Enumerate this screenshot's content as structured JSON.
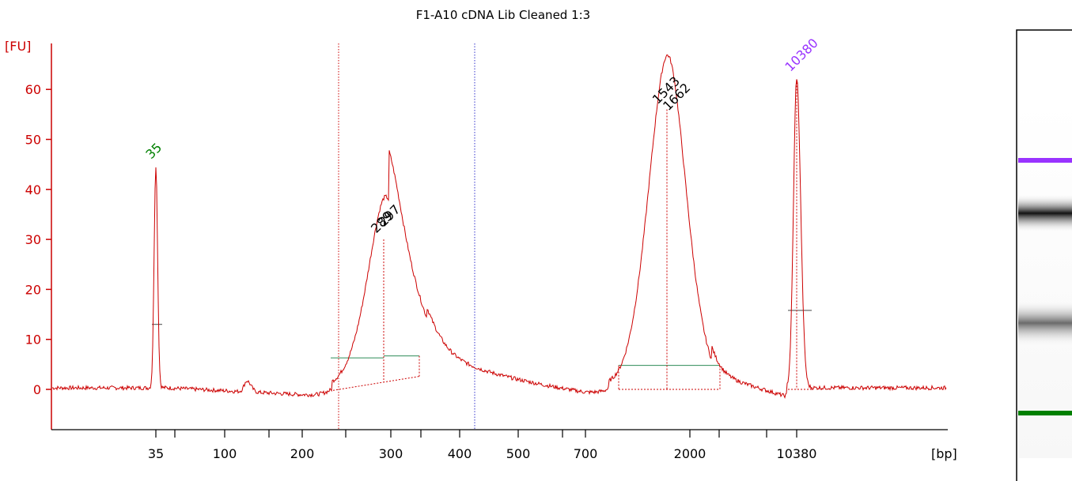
{
  "chart_data": {
    "type": "line",
    "title": "F1-A10 cDNA Lib Cleaned 1:3",
    "ylabel": "[FU]",
    "xlabel": "[bp]",
    "yticks": [
      0,
      10,
      20,
      30,
      40,
      50,
      60
    ],
    "xticks": [
      "35",
      "100",
      "200",
      "300",
      "400",
      "500",
      "700",
      "2000",
      "10380"
    ],
    "ylim": [
      -8,
      68
    ],
    "grid": false,
    "colors": {
      "trace": "#cc0000",
      "axis": "#cc0000",
      "region_line": "#2e8b57",
      "lower_marker": "#008000",
      "upper_marker": "#9933ff",
      "peak_label": "#000000"
    },
    "series": [
      {
        "peaks": [
          {
            "size_bp": 35,
            "fu": 45,
            "kind": "lower_marker"
          },
          {
            "size_bp": 122,
            "fu": 2.2,
            "kind": "minor"
          },
          {
            "size_bp": 289,
            "fu": 30,
            "kind": "sample"
          },
          {
            "size_bp": 297,
            "fu": 31.5,
            "kind": "sample"
          },
          {
            "size_bp": 1543,
            "fu": 56,
            "kind": "sample"
          },
          {
            "size_bp": 1662,
            "fu": 55,
            "kind": "sample"
          },
          {
            "size_bp": 10380,
            "fu": 62.5,
            "kind": "upper_marker"
          }
        ],
        "baseline_fu": 0
      }
    ],
    "peak_labels": [
      {
        "text": "35",
        "color": "#008000"
      },
      {
        "text": "289",
        "color": "#000000"
      },
      {
        "text": "297",
        "color": "#000000"
      },
      {
        "text": "1543",
        "color": "#000000"
      },
      {
        "text": "1662",
        "color": "#000000"
      },
      {
        "text": "10380",
        "color": "#9933ff"
      }
    ],
    "gel_bands": [
      {
        "label": "upper_marker",
        "color": "#9933ff"
      },
      {
        "label": "sample_band_high",
        "color": "#1a1a1a"
      },
      {
        "label": "sample_band_low",
        "color": "#777777"
      },
      {
        "label": "lower_marker",
        "color": "#008000"
      }
    ]
  }
}
